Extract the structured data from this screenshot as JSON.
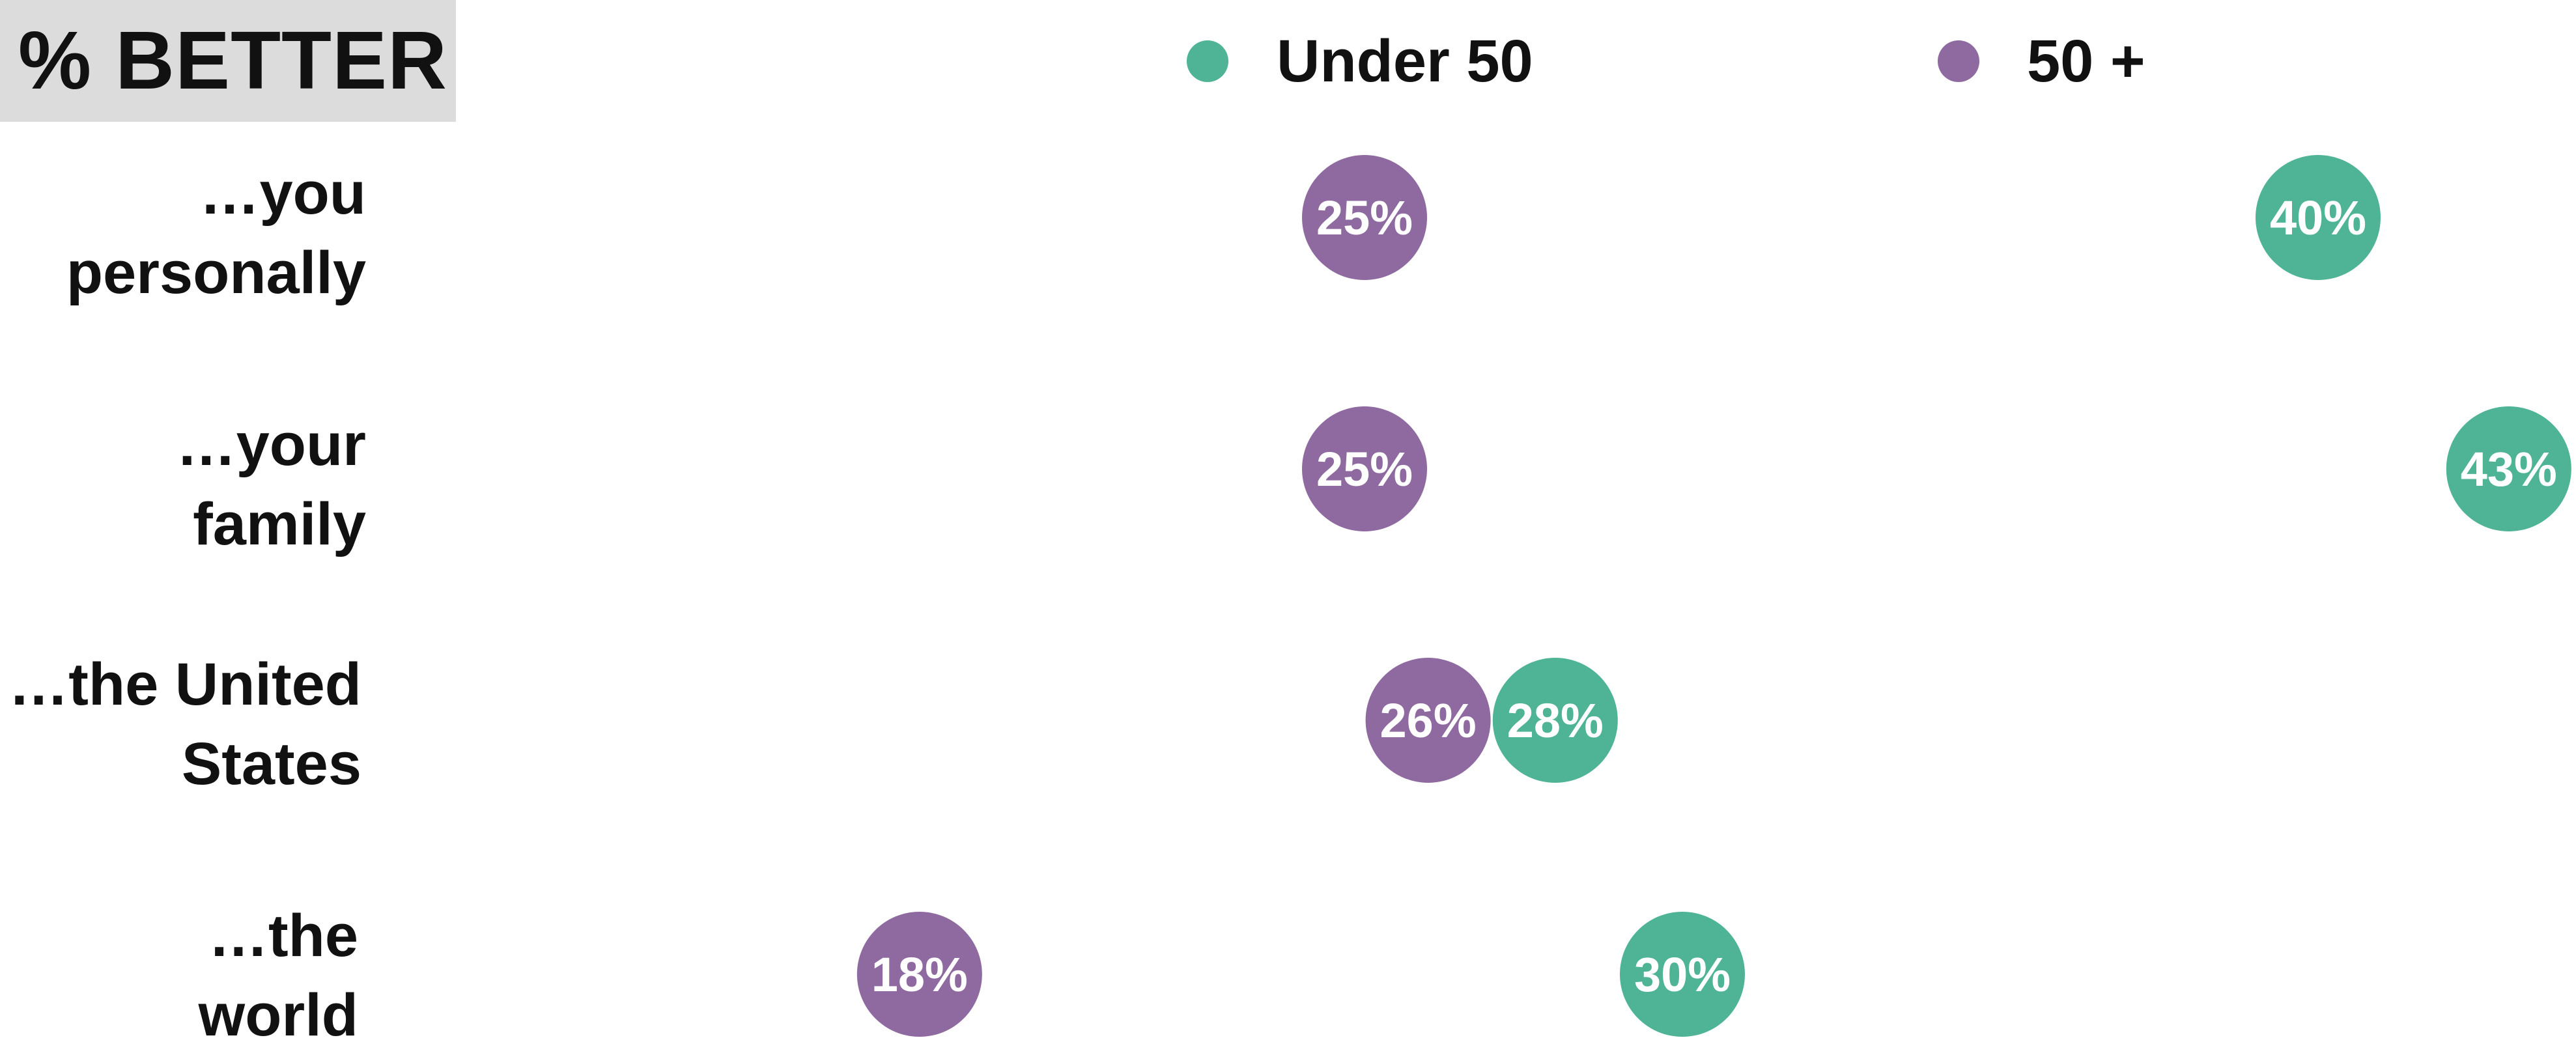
{
  "chart_data": {
    "type": "scatter",
    "title": "% BETTER",
    "legend_placement": "top",
    "grid": false,
    "series": [
      {
        "name": "Under 50",
        "color": "#4fb496",
        "values": [
          40,
          43,
          28,
          30
        ]
      },
      {
        "name": "50 +",
        "color": "#8f6aa0",
        "values": [
          25,
          25,
          26,
          18
        ]
      }
    ],
    "categories": [
      {
        "line1": "…you",
        "line2": "personally"
      },
      {
        "line1": "…your",
        "line2": "family"
      },
      {
        "line1": "…the United",
        "line2": "States"
      },
      {
        "line1": "…the",
        "line2": "world"
      }
    ],
    "data_labels": [
      [
        "40%",
        "43%",
        "28%",
        "30%"
      ],
      [
        "25%",
        "25%",
        "26%",
        "18%"
      ]
    ],
    "xlim": [
      11,
      44
    ]
  }
}
